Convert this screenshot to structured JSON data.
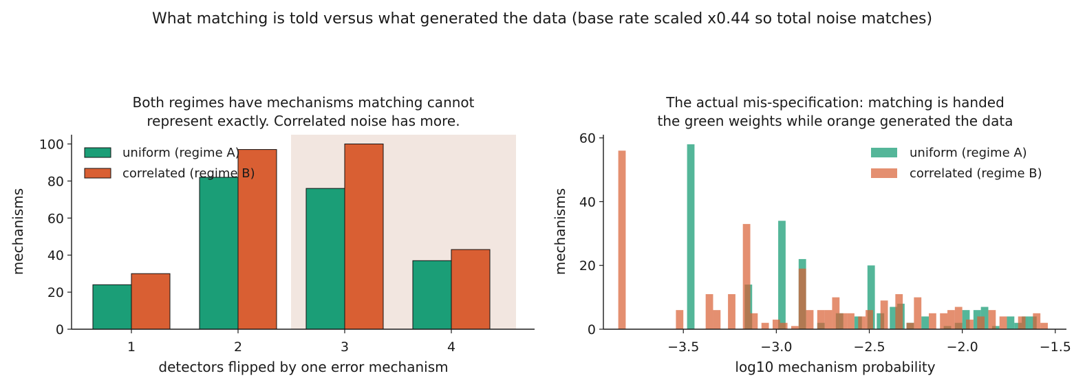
{
  "figure": {
    "suptitle": "What matching is told versus what generated the data (base rate scaled x0.44 so total noise matches)"
  },
  "colors": {
    "uniform": "#1b9e77",
    "correlated": "#d95f33",
    "shade": "#f2e6e0"
  },
  "chart_data": [
    {
      "type": "bar",
      "title_lines": [
        "Both regimes have mechanisms matching cannot",
        "represent exactly. Correlated noise has more."
      ],
      "xlabel": "detectors flipped by one error mechanism",
      "ylabel": "mechanisms",
      "categories": [
        "1",
        "2",
        "3",
        "4"
      ],
      "ylim": [
        0,
        105
      ],
      "yticks": [
        0,
        20,
        40,
        60,
        80,
        100
      ],
      "series": [
        {
          "name": "uniform (regime A)",
          "values": [
            24,
            82,
            76,
            37
          ]
        },
        {
          "name": "correlated (regime B)",
          "values": [
            30,
            97,
            100,
            43
          ]
        }
      ],
      "shaded_categories": [
        "3",
        "4"
      ],
      "legend": "top-left"
    },
    {
      "type": "histogram",
      "title_lines": [
        "The actual mis-specification: matching is handed",
        "the green weights while orange generated the data"
      ],
      "xlabel": "log10 mechanism probability",
      "ylabel": "mechanisms",
      "xlim": [
        -3.93,
        -1.44
      ],
      "ylim": [
        0,
        61
      ],
      "xticks": [
        -3.5,
        -3.0,
        -2.5,
        -2.0,
        -1.5
      ],
      "xtick_labels": [
        "−3.5",
        "−3.0",
        "−2.5",
        "−2.0",
        "−1.5"
      ],
      "yticks": [
        0,
        20,
        40,
        60
      ],
      "legend": "top-right",
      "series": [
        {
          "name": "uniform (regime A)",
          "bins": [
            {
              "x0": -3.48,
              "x1": -3.44,
              "count": 58
            },
            {
              "x0": -3.17,
              "x1": -3.13,
              "count": 14
            },
            {
              "x0": -2.99,
              "x1": -2.95,
              "count": 34
            },
            {
              "x0": -2.88,
              "x1": -2.84,
              "count": 22
            },
            {
              "x0": -2.78,
              "x1": -2.74,
              "count": 2
            },
            {
              "x0": -2.68,
              "x1": -2.64,
              "count": 5
            },
            {
              "x0": -2.58,
              "x1": -2.54,
              "count": 4
            },
            {
              "x0": -2.51,
              "x1": -2.47,
              "count": 20
            },
            {
              "x0": -2.46,
              "x1": -2.42,
              "count": 5
            },
            {
              "x0": -2.39,
              "x1": -2.35,
              "count": 7
            },
            {
              "x0": -2.35,
              "x1": -2.31,
              "count": 8
            },
            {
              "x0": -2.3,
              "x1": -2.26,
              "count": 2
            },
            {
              "x0": -2.22,
              "x1": -2.18,
              "count": 4
            },
            {
              "x0": -2.1,
              "x1": -2.06,
              "count": 1
            },
            {
              "x0": -2.04,
              "x1": -2.0,
              "count": 2
            },
            {
              "x0": -2.0,
              "x1": -1.96,
              "count": 6
            },
            {
              "x0": -1.94,
              "x1": -1.9,
              "count": 6
            },
            {
              "x0": -1.9,
              "x1": -1.86,
              "count": 7
            },
            {
              "x0": -1.84,
              "x1": -1.8,
              "count": 1
            },
            {
              "x0": -1.76,
              "x1": -1.72,
              "count": 4
            },
            {
              "x0": -1.72,
              "x1": -1.68,
              "count": 2
            },
            {
              "x0": -1.68,
              "x1": -1.64,
              "count": 4
            },
            {
              "x0": -1.64,
              "x1": -1.6,
              "count": 4
            }
          ]
        },
        {
          "name": "correlated (regime B)",
          "bins": [
            {
              "x0": -3.85,
              "x1": -3.81,
              "count": 56
            },
            {
              "x0": -3.54,
              "x1": -3.5,
              "count": 6
            },
            {
              "x0": -3.38,
              "x1": -3.34,
              "count": 11
            },
            {
              "x0": -3.34,
              "x1": -3.3,
              "count": 6
            },
            {
              "x0": -3.26,
              "x1": -3.22,
              "count": 11
            },
            {
              "x0": -3.18,
              "x1": -3.14,
              "count": 33
            },
            {
              "x0": -3.14,
              "x1": -3.1,
              "count": 5
            },
            {
              "x0": -3.08,
              "x1": -3.04,
              "count": 2
            },
            {
              "x0": -3.02,
              "x1": -2.98,
              "count": 3
            },
            {
              "x0": -2.98,
              "x1": -2.94,
              "count": 2
            },
            {
              "x0": -2.92,
              "x1": -2.88,
              "count": 1
            },
            {
              "x0": -2.88,
              "x1": -2.84,
              "count": 19
            },
            {
              "x0": -2.84,
              "x1": -2.8,
              "count": 6
            },
            {
              "x0": -2.78,
              "x1": -2.74,
              "count": 6
            },
            {
              "x0": -2.74,
              "x1": -2.7,
              "count": 6
            },
            {
              "x0": -2.7,
              "x1": -2.66,
              "count": 10
            },
            {
              "x0": -2.66,
              "x1": -2.62,
              "count": 5
            },
            {
              "x0": -2.62,
              "x1": -2.58,
              "count": 5
            },
            {
              "x0": -2.56,
              "x1": -2.52,
              "count": 4
            },
            {
              "x0": -2.52,
              "x1": -2.48,
              "count": 6
            },
            {
              "x0": -2.44,
              "x1": -2.4,
              "count": 9
            },
            {
              "x0": -2.36,
              "x1": -2.32,
              "count": 11
            },
            {
              "x0": -2.3,
              "x1": -2.26,
              "count": 2
            },
            {
              "x0": -2.26,
              "x1": -2.22,
              "count": 10
            },
            {
              "x0": -2.18,
              "x1": -2.14,
              "count": 5
            },
            {
              "x0": -2.12,
              "x1": -2.08,
              "count": 5
            },
            {
              "x0": -2.08,
              "x1": -2.04,
              "count": 6
            },
            {
              "x0": -2.04,
              "x1": -2.0,
              "count": 7
            },
            {
              "x0": -1.98,
              "x1": -1.94,
              "count": 3
            },
            {
              "x0": -1.92,
              "x1": -1.88,
              "count": 4
            },
            {
              "x0": -1.86,
              "x1": -1.82,
              "count": 6
            },
            {
              "x0": -1.8,
              "x1": -1.76,
              "count": 4
            },
            {
              "x0": -1.7,
              "x1": -1.66,
              "count": 4
            },
            {
              "x0": -1.62,
              "x1": -1.58,
              "count": 5
            },
            {
              "x0": -1.58,
              "x1": -1.54,
              "count": 2
            }
          ]
        }
      ]
    }
  ]
}
